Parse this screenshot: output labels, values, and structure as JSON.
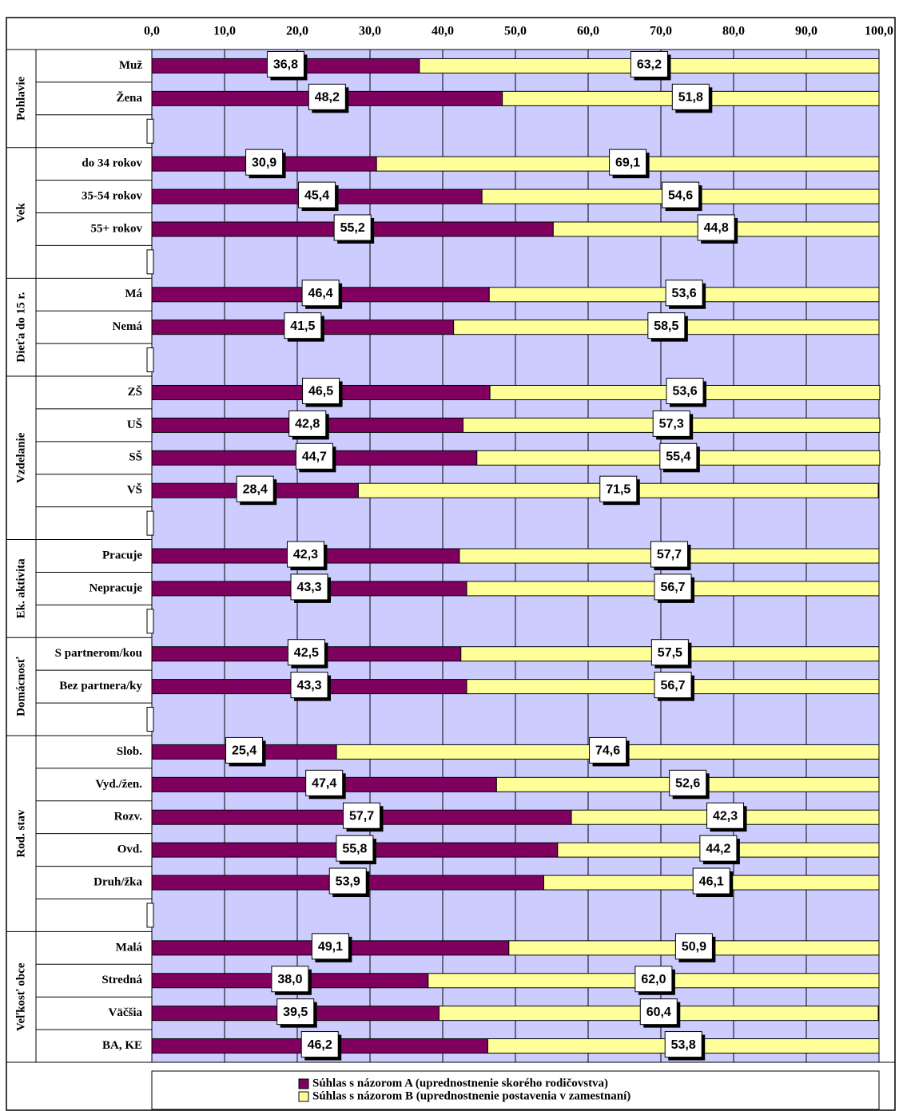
{
  "chart_data": {
    "type": "stacked-bar-horizontal",
    "groups": [
      {
        "name": "Pohlavie",
        "categories": [
          "Muž",
          "Žena",
          null
        ]
      },
      {
        "name": "Vek",
        "categories": [
          "do 34 rokov",
          "35-54 rokov",
          "55+ rokov",
          null
        ]
      },
      {
        "name": "Dieťa do 15 r.",
        "categories": [
          "Má",
          "Nemá",
          null
        ]
      },
      {
        "name": "Vzdelanie",
        "categories": [
          "ZŠ",
          "UŠ",
          "SŠ",
          "VŠ",
          null
        ]
      },
      {
        "name": "Ek. aktivita",
        "categories": [
          "Pracuje",
          "Nepracuje",
          null
        ]
      },
      {
        "name": "Domácnosť",
        "categories": [
          "S partnerom/kou",
          "Bez partnera/ky",
          null
        ]
      },
      {
        "name": "Rod. stav",
        "categories": [
          "Slob.",
          "Vyd./žen.",
          "Rozv.",
          "Ovd.",
          "Druh/žka",
          null
        ]
      },
      {
        "name": "Veľkosť obce",
        "categories": [
          "Malá",
          "Stredná",
          "Väčšia",
          "BA, KE"
        ]
      }
    ],
    "series": [
      {
        "name": "Súhlas s názorom A (uprednostnenie skorého rodičovstva)",
        "color": "#800060",
        "values": [
          36.8,
          48.2,
          null,
          30.9,
          45.4,
          55.2,
          null,
          46.4,
          41.5,
          null,
          46.5,
          42.8,
          44.7,
          28.4,
          null,
          42.3,
          43.3,
          null,
          42.5,
          43.3,
          null,
          25.4,
          47.4,
          57.7,
          55.8,
          53.9,
          null,
          49.1,
          38.0,
          39.5,
          46.2
        ],
        "value_labels": [
          "36,8",
          "48,2",
          null,
          "30,9",
          "45,4",
          "55,2",
          null,
          "46,4",
          "41,5",
          null,
          "46,5",
          "42,8",
          "44,7",
          "28,4",
          null,
          "42,3",
          "43,3",
          null,
          "42,5",
          "43,3",
          null,
          "25,4",
          "47,4",
          "57,7",
          "55,8",
          "53,9",
          null,
          "49,1",
          "38,0",
          "39,5",
          "46,2"
        ]
      },
      {
        "name": "Súhlas s názorom B (uprednostnenie postavenia v zamestnaní)",
        "color": "#ffff99",
        "values": [
          63.2,
          51.8,
          null,
          69.1,
          54.6,
          44.8,
          null,
          53.6,
          58.5,
          null,
          53.6,
          57.3,
          55.4,
          71.5,
          null,
          57.7,
          56.7,
          null,
          57.5,
          56.7,
          null,
          74.6,
          52.6,
          42.3,
          44.2,
          46.1,
          null,
          50.9,
          62.0,
          60.4,
          53.8
        ],
        "value_labels": [
          "63,2",
          "51,8",
          null,
          "69,1",
          "54,6",
          "44,8",
          null,
          "53,6",
          "58,5",
          null,
          "53,6",
          "57,3",
          "55,4",
          "71,5",
          null,
          "57,7",
          "56,7",
          null,
          "57,5",
          "56,7",
          null,
          "74,6",
          "52,6",
          "42,3",
          "44,2",
          "46,1",
          null,
          "50,9",
          "62,0",
          "60,4",
          "53,8"
        ]
      }
    ],
    "xlim": [
      0,
      100
    ],
    "xticks": [
      {
        "value": 0,
        "label": "0,0"
      },
      {
        "value": 10,
        "label": "10,0"
      },
      {
        "value": 20,
        "label": "20,0"
      },
      {
        "value": 30,
        "label": "30,0"
      },
      {
        "value": 40,
        "label": "40,0"
      },
      {
        "value": 50,
        "label": "50,0"
      },
      {
        "value": 60,
        "label": "60,0"
      },
      {
        "value": 70,
        "label": "70,0"
      },
      {
        "value": 80,
        "label": "80,0"
      },
      {
        "value": 90,
        "label": "90,0"
      },
      {
        "value": 100,
        "label": "100,0"
      }
    ],
    "grid": true,
    "plot_background": "#ccccff",
    "legend": "bottom"
  }
}
